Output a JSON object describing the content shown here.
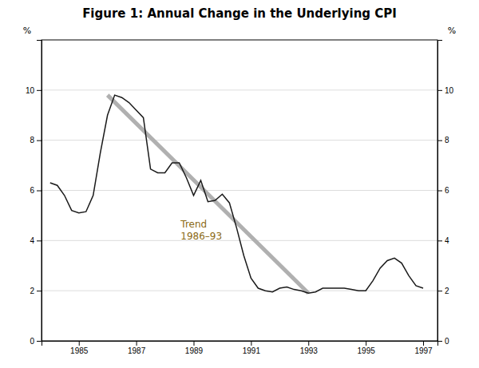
{
  "chart_data": {
    "type": "line",
    "title": "Figure 1: Annual Change in the Underlying CPI",
    "ylabel": "%",
    "y2label": "%",
    "xlim": [
      1983.7,
      1997.5
    ],
    "xticks": [
      1985,
      1987,
      1989,
      1991,
      1993,
      1995,
      1997
    ],
    "ylim": [
      0,
      12
    ],
    "yticks": [
      0,
      2,
      4,
      6,
      8,
      10
    ],
    "y2lim": [
      0,
      12
    ],
    "y2ticks": [
      0,
      2,
      4,
      6,
      8,
      10
    ],
    "grid": true,
    "x": [
      1984.0,
      1984.25,
      1984.5,
      1984.75,
      1985.0,
      1985.25,
      1985.5,
      1985.75,
      1986.0,
      1986.25,
      1986.5,
      1986.75,
      1987.0,
      1987.25,
      1987.5,
      1987.75,
      1988.0,
      1988.25,
      1988.5,
      1988.75,
      1989.0,
      1989.25,
      1989.5,
      1989.75,
      1990.0,
      1990.25,
      1990.5,
      1990.75,
      1991.0,
      1991.25,
      1991.5,
      1991.75,
      1992.0,
      1992.25,
      1992.5,
      1992.75,
      1993.0,
      1993.25,
      1993.5,
      1993.75,
      1994.0,
      1994.25,
      1994.5,
      1994.75,
      1995.0,
      1995.25,
      1995.5,
      1995.75,
      1996.0,
      1996.25,
      1996.5,
      1996.75,
      1997.0
    ],
    "series": [
      {
        "color": "#b0b0b0",
        "x": [
          1986.0,
          1993.0
        ],
        "values": [
          9.8,
          1.9
        ]
      },
      {
        "color": "#1a1a1a",
        "values": [
          6.3,
          6.2,
          5.8,
          5.2,
          5.1,
          5.15,
          5.8,
          7.5,
          9.0,
          9.8,
          9.7,
          9.5,
          9.2,
          8.9,
          6.85,
          6.7,
          6.7,
          7.1,
          7.1,
          6.5,
          5.8,
          6.4,
          5.55,
          5.6,
          5.85,
          5.5,
          4.5,
          3.4,
          2.5,
          2.1,
          2.0,
          1.95,
          2.1,
          2.15,
          2.05,
          2.0,
          1.9,
          1.95,
          2.1,
          2.1,
          2.1,
          2.1,
          2.05,
          2.0,
          2.0,
          2.4,
          2.9,
          3.2,
          3.3,
          3.1,
          2.6,
          2.2,
          2.1
        ]
      }
    ],
    "annotations": [
      {
        "text": "Trend\n1986–93",
        "x": 1988.55,
        "y": 4.85,
        "color": "#8B6914"
      }
    ]
  }
}
